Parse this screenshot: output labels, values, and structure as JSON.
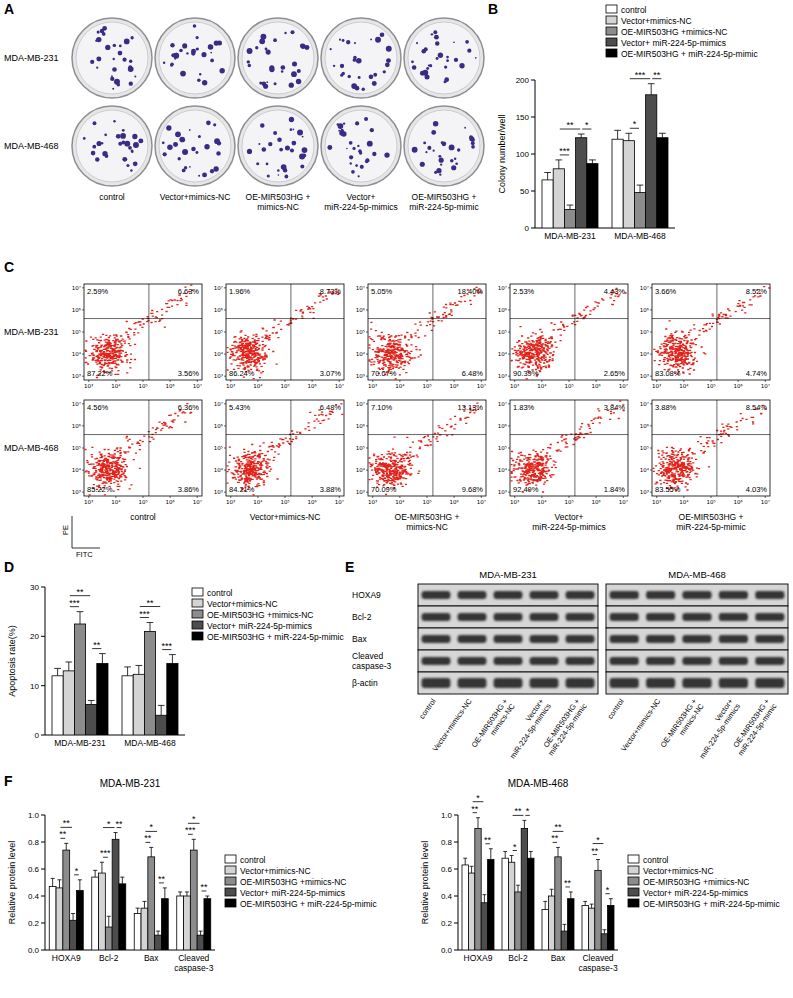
{
  "panel_labels": [
    "A",
    "B",
    "C",
    "D",
    "E",
    "F"
  ],
  "colony_assay": {
    "cell_lines": [
      "MDA-MB-231",
      "MDA-MB-468"
    ],
    "groups": [
      "control",
      "Vector+mimics-NC",
      "OE-MIR503HG + mimics-NC",
      "Vector+ miR-224-5p-mimics",
      "OE-MIR503HG + miR-224-5p-mimic"
    ]
  },
  "flow_cytometry": {
    "cell_lines": [
      "MDA-MB-231",
      "MDA-MB-468"
    ],
    "groups": [
      "control",
      "Vector+mimics-NC",
      "OE-MIR503HG + mimics-NC",
      "Vector+ miR-224-5p-mimics",
      "OE-MIR503HG + miR-224-5p-mimic"
    ],
    "x_label": "FITC",
    "y_label": "PE",
    "ticks": [
      "10³",
      "10⁴",
      "10⁵",
      "10⁶",
      "10⁷"
    ],
    "quadrants": [
      [
        [
          "2.59%",
          "6.63%",
          "87.22%",
          "3.56%"
        ],
        [
          "1.96%",
          "8.73%",
          "86.24%",
          "3.07%"
        ],
        [
          "5.05%",
          "18.40%",
          "70.07%",
          "6.48%"
        ],
        [
          "2.53%",
          "4.43%",
          "90.39%",
          "2.65%"
        ],
        [
          "3.66%",
          "8.52%",
          "83.08%",
          "4.74%"
        ]
      ],
      [
        [
          "4.56%",
          "6.36%",
          "85.22%",
          "3.86%"
        ],
        [
          "5.43%",
          "6.48%",
          "84.21%",
          "3.88%"
        ],
        [
          "7.10%",
          "13.13%",
          "70.09%",
          "9.68%"
        ],
        [
          "1.83%",
          "3.84%",
          "92.49%",
          "1.84%"
        ],
        [
          "3.88%",
          "8.54%",
          "83.55%",
          "4.03%"
        ]
      ]
    ]
  },
  "western_blot": {
    "cell_lines": [
      "MDA-MB-231",
      "MDA-MB-468"
    ],
    "proteins": [
      "HOXA9",
      "Bcl-2",
      "Bax",
      "Cleaved caspase-3",
      "β-actin"
    ],
    "lanes": [
      "control",
      "Vector+mimics-NC",
      "OE-MIR503HG + mimics-NC",
      "Vector+ miR-224-5p-mimics",
      "OE-MIR503HG + miR-224-5p-mimic"
    ]
  },
  "chart_data": [
    {
      "type": "bar",
      "y_label": "Colony number/well",
      "categories": [
        "MDA-MB-231",
        "MDA-MB-468"
      ],
      "series": [
        {
          "name": "control",
          "color": "#ffffff",
          "values": [
            65,
            120
          ],
          "errors": [
            10,
            12
          ]
        },
        {
          "name": "Vector+mimics-NC",
          "color": "#d4d4d4",
          "values": [
            80,
            118
          ],
          "errors": [
            12,
            10
          ]
        },
        {
          "name": "OE-MIR503HG +mimics-NC",
          "color": "#8c8c8c",
          "values": [
            25,
            48
          ],
          "errors": [
            6,
            10
          ]
        },
        {
          "name": "Vector+ miR-224-5p-mimics",
          "color": "#4d4d4d",
          "values": [
            122,
            180
          ],
          "errors": [
            5,
            15
          ]
        },
        {
          "name": "OE-MIR503HG + miR-224-5p-mimic",
          "color": "#000000",
          "values": [
            87,
            122
          ],
          "errors": [
            5,
            6
          ]
        }
      ],
      "ylim": [
        0,
        200
      ],
      "yticks": [
        0,
        50,
        100,
        150,
        200
      ],
      "legend": "top-right",
      "annotations": [
        {
          "text": "***",
          "category": 0,
          "from": 1,
          "to": 2
        },
        {
          "text": "**",
          "category": 0,
          "from": 1,
          "to": 3
        },
        {
          "text": "*",
          "category": 0,
          "from": 3,
          "to": 4
        },
        {
          "text": "*",
          "category": 1,
          "from": 1,
          "to": 2
        },
        {
          "text": "***",
          "category": 1,
          "from": 1,
          "to": 3
        },
        {
          "text": "**",
          "category": 1,
          "from": 3,
          "to": 4
        }
      ]
    },
    {
      "type": "bar",
      "y_label": "Apoptosis rate(%)",
      "categories": [
        "MDA-MB-231",
        "MDA-MB-468"
      ],
      "series": [
        {
          "name": "control",
          "color": "#ffffff",
          "values": [
            12,
            12
          ],
          "errors": [
            1.5,
            1.8
          ]
        },
        {
          "name": "Vector+mimics-NC",
          "color": "#d4d4d4",
          "values": [
            13,
            12.3
          ],
          "errors": [
            1.8,
            1.8
          ]
        },
        {
          "name": "OE-MIR503HG +mimics-NC",
          "color": "#8c8c8c",
          "values": [
            22.5,
            21
          ],
          "errors": [
            2.5,
            1.8
          ]
        },
        {
          "name": "Vector+ miR-224-5p-mimics",
          "color": "#4d4d4d",
          "values": [
            6.2,
            4
          ],
          "errors": [
            0.8,
            2
          ]
        },
        {
          "name": "OE-MIR503HG + miR-224-5p-mimic",
          "color": "#000000",
          "values": [
            14.5,
            14.5
          ],
          "errors": [
            2,
            1.8
          ]
        }
      ],
      "ylim": [
        0,
        30
      ],
      "yticks": [
        0,
        10,
        20,
        30
      ],
      "legend": "top-right",
      "annotations": [
        {
          "text": "***",
          "category": 0,
          "from": 1,
          "to": 2
        },
        {
          "text": "**",
          "category": 0,
          "from": 1,
          "to": 3
        },
        {
          "text": "**",
          "category": 0,
          "from": 3,
          "to": 4
        },
        {
          "text": "***",
          "category": 1,
          "from": 1,
          "to": 2
        },
        {
          "text": "**",
          "category": 1,
          "from": 1,
          "to": 3
        },
        {
          "text": "***",
          "category": 1,
          "from": 3,
          "to": 4
        }
      ]
    },
    {
      "type": "bar",
      "title": "MDA-MB-231",
      "y_label": "Relative protein level",
      "categories": [
        "HOXA9",
        "Bcl-2",
        "Bax",
        "Cleaved caspase-3"
      ],
      "series": [
        {
          "name": "control",
          "color": "#ffffff",
          "values": [
            0.47,
            0.54,
            0.27,
            0.4
          ],
          "errors": [
            0.06,
            0.05,
            0.04,
            0.03
          ]
        },
        {
          "name": "Vector+mimics-NC",
          "color": "#d4d4d4",
          "values": [
            0.46,
            0.57,
            0.31,
            0.4
          ],
          "errors": [
            0.06,
            0.08,
            0.05,
            0.03
          ]
        },
        {
          "name": "OE-MIR503HG +mimics-NC",
          "color": "#8c8c8c",
          "values": [
            0.74,
            0.17,
            0.69,
            0.74
          ],
          "errors": [
            0.05,
            0.08,
            0.07,
            0.08
          ]
        },
        {
          "name": "Vector+ miR-224-5p-mimics",
          "color": "#4d4d4d",
          "values": [
            0.22,
            0.82,
            0.11,
            0.11
          ],
          "errors": [
            0.05,
            0.05,
            0.03,
            0.03
          ]
        },
        {
          "name": "OE-MIR503HG + miR-224-5p-mimic",
          "color": "#000000",
          "values": [
            0.44,
            0.49,
            0.38,
            0.38
          ],
          "errors": [
            0.08,
            0.05,
            0.08,
            0.02
          ]
        }
      ],
      "ylim": [
        0,
        1
      ],
      "yticks": [
        {
          "value": 0,
          "label": "0.0"
        },
        0.2,
        0.4,
        0.6,
        0.8,
        {
          "value": 1,
          "label": "1.0"
        }
      ],
      "legend": "right",
      "annotations": [
        {
          "text": "**",
          "category": 0,
          "from": 1,
          "to": 2
        },
        {
          "text": "**",
          "category": 0,
          "from": 1,
          "to": 3
        },
        {
          "text": "*",
          "category": 0,
          "from": 3,
          "to": 4
        },
        {
          "text": "***",
          "category": 1,
          "from": 1,
          "to": 2
        },
        {
          "text": "*",
          "category": 1,
          "from": 1,
          "to": 3
        },
        {
          "text": "**",
          "category": 1,
          "from": 3,
          "to": 4
        },
        {
          "text": "**",
          "category": 2,
          "from": 1,
          "to": 2
        },
        {
          "text": "*",
          "category": 2,
          "from": 1,
          "to": 3
        },
        {
          "text": "**",
          "category": 2,
          "from": 3,
          "to": 4
        },
        {
          "text": "***",
          "category": 3,
          "from": 1,
          "to": 2
        },
        {
          "text": "*",
          "category": 3,
          "from": 1,
          "to": 3
        },
        {
          "text": "**",
          "category": 3,
          "from": 3,
          "to": 4
        }
      ]
    },
    {
      "type": "bar",
      "title": "MDA-MB-468",
      "y_label": "Relative protein level",
      "categories": [
        "HOXA9",
        "Bcl-2",
        "Bax",
        "Cleaved caspase-3"
      ],
      "series": [
        {
          "name": "control",
          "color": "#ffffff",
          "values": [
            0.63,
            0.68,
            0.3,
            0.33
          ],
          "errors": [
            0.05,
            0.05,
            0.06,
            0.03
          ]
        },
        {
          "name": "Vector+mimics-NC",
          "color": "#d4d4d4",
          "values": [
            0.57,
            0.65,
            0.4,
            0.31
          ],
          "errors": [
            0.05,
            0.05,
            0.05,
            0.03
          ]
        },
        {
          "name": "OE-MIR503HG +mimics-NC",
          "color": "#8c8c8c",
          "values": [
            0.9,
            0.43,
            0.69,
            0.59
          ],
          "errors": [
            0.08,
            0.05,
            0.07,
            0.08
          ]
        },
        {
          "name": "Vector+ miR-224-5p-mimics",
          "color": "#4d4d4d",
          "values": [
            0.35,
            0.9,
            0.14,
            0.12
          ],
          "errors": [
            0.06,
            0.06,
            0.05,
            0.03
          ]
        },
        {
          "name": "OE-MIR503HG + miR-224-5p-mimic",
          "color": "#000000",
          "values": [
            0.67,
            0.68,
            0.38,
            0.33
          ],
          "errors": [
            0.08,
            0.05,
            0.05,
            0.05
          ]
        }
      ],
      "ylim": [
        0,
        1
      ],
      "yticks": [
        {
          "value": 0,
          "label": "0.0"
        },
        0.2,
        0.4,
        0.6,
        0.8,
        {
          "value": 1,
          "label": "1.0"
        }
      ],
      "legend": "right",
      "annotations": [
        {
          "text": "**",
          "category": 0,
          "from": 1,
          "to": 2
        },
        {
          "text": "*",
          "category": 0,
          "from": 1,
          "to": 3
        },
        {
          "text": "**",
          "category": 0,
          "from": 3,
          "to": 4
        },
        {
          "text": "*",
          "category": 1,
          "from": 1,
          "to": 2
        },
        {
          "text": "**",
          "category": 1,
          "from": 1,
          "to": 3
        },
        {
          "text": "*",
          "category": 1,
          "from": 3,
          "to": 4
        },
        {
          "text": "**",
          "category": 2,
          "from": 1,
          "to": 2
        },
        {
          "text": "**",
          "category": 2,
          "from": 1,
          "to": 3
        },
        {
          "text": "**",
          "category": 2,
          "from": 3,
          "to": 4
        },
        {
          "text": "**",
          "category": 3,
          "from": 1,
          "to": 2
        },
        {
          "text": "*",
          "category": 3,
          "from": 1,
          "to": 3
        },
        {
          "text": "*",
          "category": 3,
          "from": 3,
          "to": 4
        }
      ]
    }
  ]
}
